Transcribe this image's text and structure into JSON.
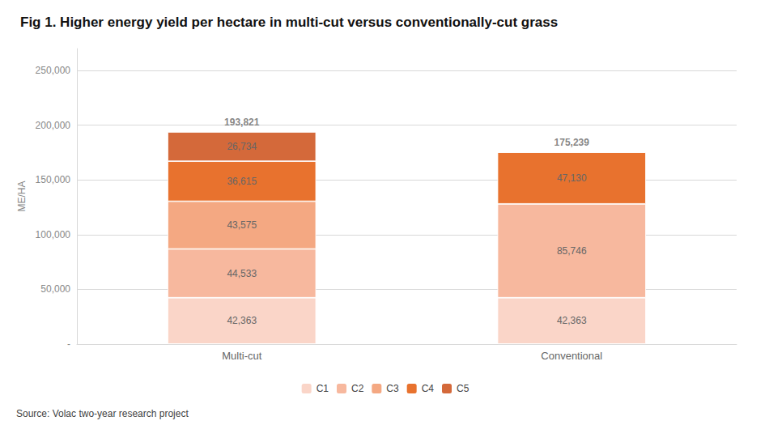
{
  "chart_data": {
    "type": "bar",
    "title": "Fig 1. Higher energy yield per hectare in multi-cut versus conventionally-cut grass",
    "ylabel": "ME/HA",
    "source": "Source: Volac two-year research project",
    "categories": [
      "Multi-cut",
      "Conventional"
    ],
    "series": [
      {
        "name": "C1",
        "color": "#fad5c8",
        "values": [
          42363,
          42363
        ],
        "value_labels": [
          "42,363",
          "42,363"
        ]
      },
      {
        "name": "C2",
        "color": "#f7b89e",
        "values": [
          44533,
          85746
        ],
        "value_labels": [
          "44,533",
          "85,746"
        ]
      },
      {
        "name": "C3",
        "color": "#f4a882",
        "values": [
          43575,
          0
        ],
        "value_labels": [
          "43,575",
          null
        ]
      },
      {
        "name": "C4",
        "color": "#e8722e",
        "values": [
          36615,
          47130
        ],
        "value_labels": [
          "36,615",
          "47,130"
        ]
      },
      {
        "name": "C5",
        "color": "#d4693a",
        "values": [
          26734,
          0
        ],
        "value_labels": [
          "26,734",
          null
        ]
      }
    ],
    "totals": [
      193821,
      175239
    ],
    "total_labels": [
      "193,821",
      "175,239"
    ],
    "stacked": true,
    "data_labels": true,
    "ylim": [
      0,
      270000
    ],
    "yticks": [
      {
        "value": 0,
        "label": "-"
      },
      {
        "value": 50000,
        "label": "50,000"
      },
      {
        "value": 100000,
        "label": "100,000"
      },
      {
        "value": 150000,
        "label": "150,000"
      },
      {
        "value": 200000,
        "label": "200,000"
      },
      {
        "value": 250000,
        "label": "250,000"
      }
    ],
    "grid": true,
    "legend": "bottom"
  }
}
